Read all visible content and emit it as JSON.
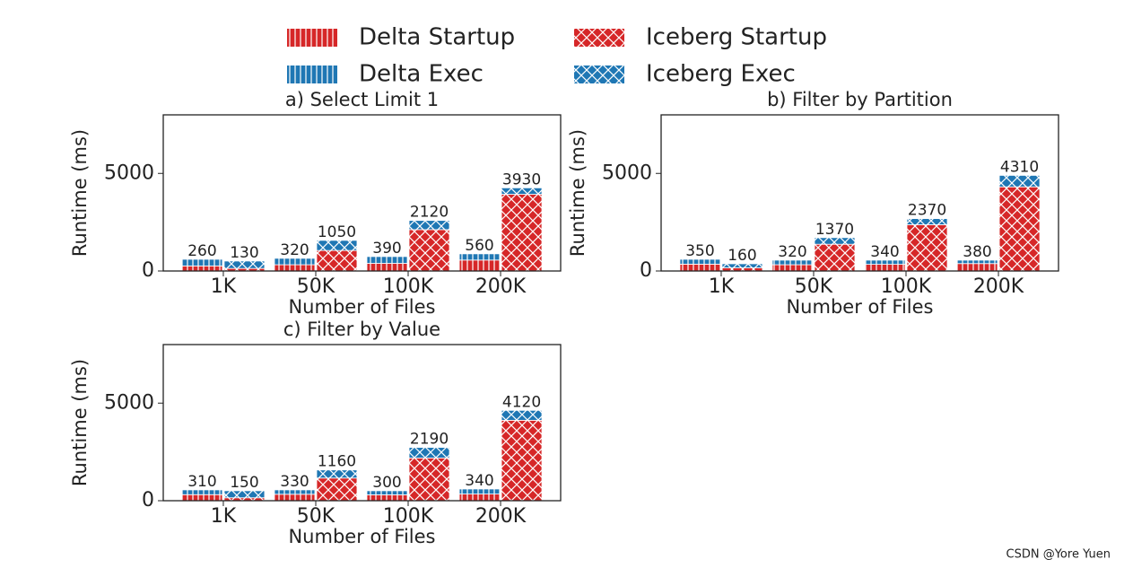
{
  "chart_data": [
    {
      "type": "bar",
      "stacked": true,
      "title": "a) Select Limit 1",
      "xlabel": "Number of Files",
      "ylabel": "Runtime (ms)",
      "categories": [
        "1K",
        "50K",
        "100K",
        "200K"
      ],
      "ylim": [
        0,
        8000
      ],
      "yticks": [
        0,
        5000
      ],
      "series": [
        {
          "name": "Delta Startup",
          "color": "#d62728",
          "hatch": "|",
          "values": [
            260,
            320,
            390,
            560
          ]
        },
        {
          "name": "Delta Exec",
          "color": "#1f77b4",
          "hatch": "|",
          "values": [
            340,
            330,
            350,
            320
          ]
        },
        {
          "name": "Iceberg Startup",
          "color": "#d62728",
          "hatch": "x",
          "values": [
            130,
            1050,
            2120,
            3930
          ]
        },
        {
          "name": "Iceberg Exec",
          "color": "#1f77b4",
          "hatch": "x",
          "values": [
            380,
            520,
            470,
            330
          ]
        }
      ]
    },
    {
      "type": "bar",
      "stacked": true,
      "title": "b) Filter by Partition",
      "xlabel": "Number of Files",
      "ylabel": "Runtime (ms)",
      "categories": [
        "1K",
        "50K",
        "100K",
        "200K"
      ],
      "ylim": [
        0,
        8000
      ],
      "yticks": [
        0,
        5000
      ],
      "series": [
        {
          "name": "Delta Startup",
          "color": "#d62728",
          "hatch": "|",
          "values": [
            350,
            320,
            340,
            380
          ]
        },
        {
          "name": "Delta Exec",
          "color": "#1f77b4",
          "hatch": "|",
          "values": [
            250,
            235,
            215,
            175
          ]
        },
        {
          "name": "Iceberg Startup",
          "color": "#d62728",
          "hatch": "x",
          "values": [
            160,
            1370,
            2370,
            4310
          ]
        },
        {
          "name": "Iceberg Exec",
          "color": "#1f77b4",
          "hatch": "x",
          "values": [
            210,
            340,
            315,
            590
          ]
        }
      ]
    },
    {
      "type": "bar",
      "stacked": true,
      "title": "c) Filter by Value",
      "xlabel": "Number of Files",
      "ylabel": "Runtime (ms)",
      "categories": [
        "1K",
        "50K",
        "100K",
        "200K"
      ],
      "ylim": [
        0,
        8000
      ],
      "yticks": [
        0,
        5000
      ],
      "series": [
        {
          "name": "Delta Startup",
          "color": "#d62728",
          "hatch": "|",
          "values": [
            310,
            330,
            300,
            340
          ]
        },
        {
          "name": "Delta Exec",
          "color": "#1f77b4",
          "hatch": "|",
          "values": [
            245,
            225,
            210,
            260
          ]
        },
        {
          "name": "Iceberg Startup",
          "color": "#d62728",
          "hatch": "x",
          "values": [
            150,
            1160,
            2190,
            4120
          ]
        },
        {
          "name": "Iceberg Exec",
          "color": "#1f77b4",
          "hatch": "x",
          "values": [
            360,
            415,
            540,
            510
          ]
        }
      ]
    }
  ],
  "watermark": "CSDN @Yore Yuen"
}
